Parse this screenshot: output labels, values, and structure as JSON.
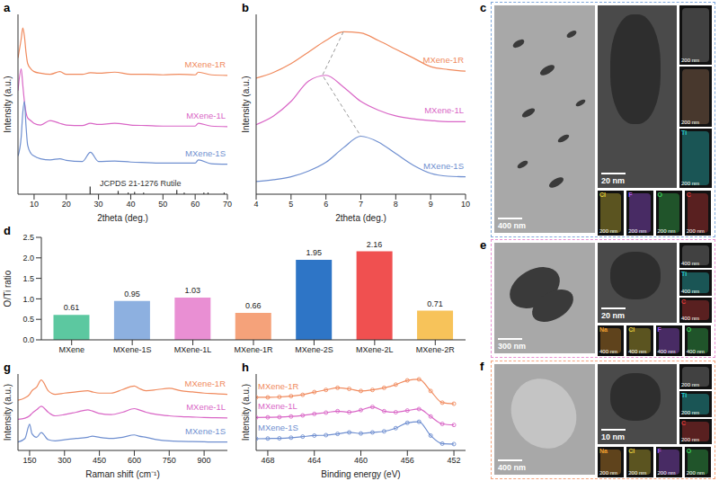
{
  "chart_data": [
    {
      "panel": "a",
      "type": "line",
      "x_label": "2theta (deg.)",
      "y_label": "Intensity (a.u.)",
      "tick_labels": "x",
      "xlim": [
        5,
        70
      ],
      "xticks": [
        10,
        20,
        30,
        40,
        50,
        60,
        70
      ],
      "ylim": [
        0,
        3.3
      ],
      "x": [
        5,
        6,
        6.5,
        7,
        7.5,
        8,
        9,
        10,
        12,
        15,
        18,
        20,
        25,
        27.5,
        30,
        35,
        40,
        45,
        50,
        55,
        60,
        61,
        65,
        70
      ],
      "series": [
        {
          "name": "MXene-1R",
          "color": "#F08A5D",
          "values": [
            2.5,
            2.85,
            3.05,
            2.9,
            2.6,
            2.4,
            2.3,
            2.25,
            2.22,
            2.2,
            2.25,
            2.2,
            2.2,
            2.23,
            2.22,
            2.24,
            2.2,
            2.2,
            2.19,
            2.2,
            2.19,
            2.24,
            2.19,
            2.18
          ]
        },
        {
          "name": "MXene-1L",
          "color": "#D966C6",
          "values": [
            1.9,
            2.3,
            2.0,
            1.7,
            1.5,
            1.4,
            1.35,
            1.3,
            1.27,
            1.35,
            1.3,
            1.27,
            1.26,
            1.3,
            1.28,
            1.3,
            1.27,
            1.26,
            1.25,
            1.25,
            1.25,
            1.3,
            1.25,
            1.24
          ]
        },
        {
          "name": "MXene-1S",
          "color": "#6F8FD0",
          "values": [
            0.7,
            1.05,
            1.5,
            1.7,
            1.25,
            0.9,
            0.75,
            0.7,
            0.65,
            0.63,
            0.65,
            0.62,
            0.6,
            0.77,
            0.6,
            0.61,
            0.59,
            0.58,
            0.57,
            0.57,
            0.57,
            0.63,
            0.56,
            0.55
          ]
        }
      ],
      "reference": {
        "name": "JCPDS 21-1276 Rutile",
        "color": "#333333",
        "x": [
          27.4,
          36.1,
          39.2,
          41.2,
          44.0,
          54.3,
          56.6,
          62.7,
          64.0,
          69.0
        ],
        "values": [
          0.14,
          0.06,
          0.03,
          0.04,
          0.03,
          0.08,
          0.03,
          0.03,
          0.03,
          0.03
        ]
      }
    },
    {
      "panel": "b",
      "type": "line",
      "x_label": "2theta (deg.)",
      "y_label": "Intensity (a.u.)",
      "tick_labels": "x",
      "xlim": [
        4,
        10
      ],
      "xticks": [
        4,
        5,
        6,
        7,
        8,
        9,
        10
      ],
      "ylim": [
        0,
        3.1
      ],
      "x": [
        4,
        4.5,
        5,
        5.5,
        6,
        6.5,
        7,
        7.5,
        8,
        8.5,
        9,
        9.5,
        10
      ],
      "series": [
        {
          "name": "MXene-1R",
          "color": "#F08A5D",
          "values": [
            2.0,
            2.1,
            2.25,
            2.45,
            2.65,
            2.8,
            2.78,
            2.65,
            2.5,
            2.35,
            2.2,
            2.15,
            2.12
          ]
        },
        {
          "name": "MXene-1L",
          "color": "#D966C6",
          "values": [
            1.2,
            1.35,
            1.6,
            1.95,
            2.05,
            1.85,
            1.6,
            1.45,
            1.35,
            1.3,
            1.27,
            1.25,
            1.25
          ]
        },
        {
          "name": "MXene-1S",
          "color": "#6F8FD0",
          "values": [
            0.22,
            0.25,
            0.3,
            0.4,
            0.55,
            0.8,
            1.0,
            0.9,
            0.7,
            0.5,
            0.36,
            0.31,
            0.3
          ]
        }
      ],
      "guide": {
        "color": "#999999",
        "line_style": "dashed",
        "x": [
          6.5,
          5.9,
          7.0
        ],
        "values": [
          2.8,
          2.05,
          1.0
        ]
      }
    },
    {
      "panel": "d",
      "type": "bar",
      "y_label": "O/Ti ratio",
      "categories": [
        "MXene",
        "MXene-1S",
        "MXene-1L",
        "MXene-1R",
        "MXene-2S",
        "MXene-2L",
        "MXene-2R"
      ],
      "values": [
        0.61,
        0.95,
        1.03,
        0.66,
        1.95,
        2.16,
        0.71
      ],
      "colors": [
        "#5CC8A0",
        "#8DB0E0",
        "#E98FD3",
        "#F5A27A",
        "#2E75C6",
        "#F05050",
        "#F7C35A"
      ],
      "ylim": [
        0,
        2.5
      ],
      "yticks": [
        {
          "value": 0,
          "label": "0.0"
        },
        0.5,
        {
          "value": 1,
          "label": "1.0"
        },
        1.5,
        {
          "value": 2,
          "label": "2.0"
        },
        2.5
      ],
      "data_labels": true
    },
    {
      "panel": "g",
      "type": "line",
      "x_label": "Raman shift (cm⁻¹)",
      "y_label": "Intensity (a.u.)",
      "tick_labels": "x",
      "xlim": [
        100,
        1000
      ],
      "xticks": [
        150,
        300,
        450,
        600,
        750,
        900
      ],
      "ylim": [
        0,
        3.2
      ],
      "x": [
        100,
        130,
        150,
        160,
        180,
        200,
        230,
        260,
        300,
        350,
        400,
        420,
        450,
        500,
        550,
        600,
        620,
        650,
        700,
        750,
        800,
        850,
        900,
        950,
        1000
      ],
      "series": [
        {
          "name": "MXene-1R",
          "color": "#F08A5D",
          "values": [
            2.1,
            2.2,
            2.35,
            2.5,
            2.65,
            2.95,
            2.5,
            2.35,
            2.4,
            2.45,
            2.5,
            2.45,
            2.4,
            2.4,
            2.55,
            2.7,
            2.6,
            2.5,
            2.55,
            2.6,
            2.5,
            2.45,
            2.4,
            2.38,
            2.35
          ]
        },
        {
          "name": "MXene-1L",
          "color": "#D966C6",
          "values": [
            1.3,
            1.35,
            1.45,
            1.55,
            1.7,
            1.85,
            1.6,
            1.45,
            1.5,
            1.6,
            1.7,
            1.65,
            1.55,
            1.5,
            1.6,
            1.75,
            1.7,
            1.6,
            1.5,
            1.45,
            1.42,
            1.4,
            1.38,
            1.37,
            1.36
          ]
        },
        {
          "name": "MXene-1S",
          "color": "#6F8FD0",
          "values": [
            0.35,
            0.5,
            1.1,
            0.7,
            0.55,
            0.75,
            0.45,
            0.4,
            0.45,
            0.5,
            0.55,
            0.6,
            0.55,
            0.5,
            0.55,
            0.65,
            0.6,
            0.55,
            0.45,
            0.4,
            0.38,
            0.37,
            0.36,
            0.35,
            0.35
          ]
        }
      ]
    },
    {
      "panel": "h",
      "type": "line",
      "x_label": "Binding energy (eV)",
      "y_label": "Intensity (a.u.)",
      "tick_labels": "x",
      "xlim": [
        469,
        451
      ],
      "xticks": [
        468,
        464,
        460,
        456,
        452
      ],
      "ylim": [
        0,
        3.6
      ],
      "x": [
        469,
        468,
        467,
        466,
        465,
        464,
        463,
        462,
        461,
        460,
        459,
        458,
        457,
        456,
        455,
        454,
        453,
        452
      ],
      "series": [
        {
          "name": "MXene-1R",
          "color": "#F08A5D",
          "marker": "circle",
          "values": [
            2.5,
            2.5,
            2.52,
            2.56,
            2.62,
            2.75,
            2.85,
            2.95,
            2.9,
            2.8,
            2.85,
            2.95,
            3.1,
            3.3,
            3.35,
            2.8,
            2.25,
            2.2
          ]
        },
        {
          "name": "MXene-1L",
          "color": "#D966C6",
          "marker": "circle",
          "values": [
            1.55,
            1.56,
            1.57,
            1.6,
            1.65,
            1.72,
            1.78,
            1.85,
            1.8,
            1.9,
            2.05,
            1.85,
            1.8,
            1.88,
            1.95,
            1.6,
            1.25,
            1.2
          ]
        },
        {
          "name": "MXene-1S",
          "color": "#6F8FD0",
          "marker": "circle",
          "values": [
            0.55,
            0.56,
            0.57,
            0.6,
            0.65,
            0.7,
            0.72,
            0.78,
            0.85,
            0.8,
            0.85,
            0.9,
            1.05,
            1.3,
            1.35,
            0.7,
            0.32,
            0.3
          ]
        }
      ]
    }
  ],
  "image_panels": [
    {
      "panel": "c",
      "color": "#7FA8DC",
      "overview_scale_bar": "400 nm",
      "hrtem_scale_bar": "20 nm",
      "maps": [
        {
          "scale_bar": "200 nm",
          "color": "#9a9a9a"
        },
        {
          "scale_bar": "200 nm",
          "color": "#b08060"
        },
        {
          "element": "Ti",
          "scale_bar": "200 nm",
          "color": "#2AD4D4"
        },
        {
          "element": "Cl",
          "scale_bar": "200 nm",
          "color": "#E6D23C"
        },
        {
          "element": "F",
          "scale_bar": "200 nm",
          "color": "#B05CFF"
        },
        {
          "element": "O",
          "scale_bar": "200 nm",
          "color": "#3CD25A"
        },
        {
          "element": "C",
          "scale_bar": "200 nm",
          "color": "#E03C3C"
        }
      ]
    },
    {
      "panel": "e",
      "color": "#E98FD3",
      "overview_scale_bar": "300 nm",
      "hrtem_scale_bar": "20 nm",
      "maps": [
        {
          "scale_bar": "400 nm",
          "color": "#9a9a9a"
        },
        {
          "element": "Ti",
          "scale_bar": "400 nm",
          "color": "#2AD4D4"
        },
        {
          "element": "C",
          "scale_bar": "400 nm",
          "color": "#E03C3C"
        },
        {
          "element": "Na",
          "scale_bar": "400 nm",
          "color": "#F0A030"
        },
        {
          "element": "Cl",
          "scale_bar": "400 nm",
          "color": "#E6D23C"
        },
        {
          "element": "F",
          "scale_bar": "400 nm",
          "color": "#B05CFF"
        },
        {
          "element": "O",
          "scale_bar": "400 nm",
          "color": "#3CD25A"
        }
      ]
    },
    {
      "panel": "f",
      "color": "#F5A27A",
      "overview_scale_bar": "400 nm",
      "hrtem_scale_bar": "10 nm",
      "maps": [
        {
          "scale_bar": "200 nm",
          "color": "#9a9a9a"
        },
        {
          "element": "Ti",
          "scale_bar": "200 nm",
          "color": "#2AD4D4"
        },
        {
          "element": "C",
          "scale_bar": "200 nm",
          "color": "#E03C3C"
        },
        {
          "element": "Na",
          "scale_bar": "200 nm",
          "color": "#F0A030"
        },
        {
          "element": "Cl",
          "scale_bar": "200 nm",
          "color": "#E6D23C"
        },
        {
          "element": "F",
          "scale_bar": "200 nm",
          "color": "#B05CFF"
        },
        {
          "element": "O",
          "scale_bar": "200 nm",
          "color": "#3CD25A"
        }
      ]
    }
  ]
}
